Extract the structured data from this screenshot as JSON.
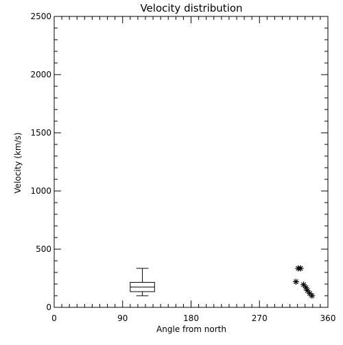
{
  "chart_data": {
    "type": "scatter",
    "title": "Velocity distribution",
    "xlabel": "Angle from north",
    "ylabel": "Velocity (km/s)",
    "xlim": [
      0,
      360
    ],
    "ylim": [
      0,
      2500
    ],
    "x_ticks": [
      0,
      90,
      180,
      270,
      360
    ],
    "y_ticks": [
      0,
      500,
      1000,
      1500,
      2000,
      2500
    ],
    "x_tick_labels": [
      "0",
      "90",
      "180",
      "270",
      "360"
    ],
    "y_tick_labels": [
      "0",
      "500",
      "1000",
      "1500",
      "2000",
      "2500"
    ],
    "x_minor_step": 10,
    "y_minor_step": 100,
    "grid": false,
    "boxplot": {
      "x_center": 116,
      "x_halfwidth": 16,
      "min": 100,
      "q1": 135,
      "median": 175,
      "q3": 215,
      "max": 335
    },
    "points": [
      {
        "x": 321,
        "y": 335
      },
      {
        "x": 324,
        "y": 335
      },
      {
        "x": 318,
        "y": 220
      },
      {
        "x": 328,
        "y": 195
      },
      {
        "x": 331,
        "y": 170
      },
      {
        "x": 333,
        "y": 145
      },
      {
        "x": 336,
        "y": 120
      },
      {
        "x": 339,
        "y": 100
      }
    ],
    "marker": "asterisk",
    "color": "#000000"
  }
}
